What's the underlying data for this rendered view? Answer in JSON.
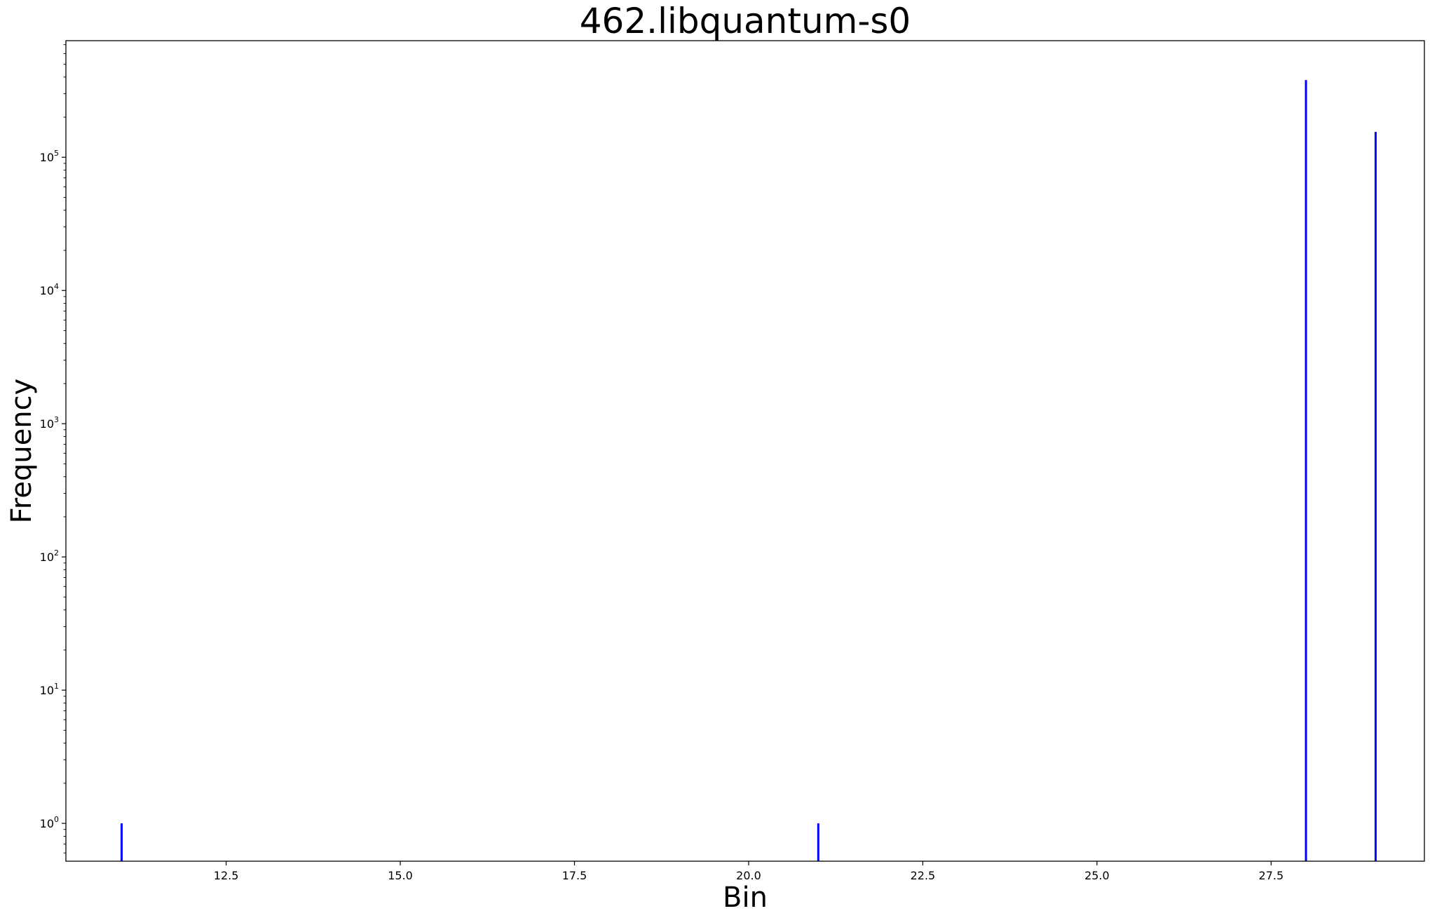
{
  "chart_data": {
    "type": "bar",
    "title": "462.libquantum-s0",
    "xlabel": "Bin",
    "ylabel": "Frequency",
    "yscale": "log",
    "xlim": [
      10.2,
      29.7
    ],
    "ylim": [
      0.52,
      750000
    ],
    "x_ticks": [
      12.5,
      15.0,
      17.5,
      20.0,
      22.5,
      25.0,
      27.5
    ],
    "x_tick_labels": [
      "12.5",
      "15.0",
      "17.5",
      "20.0",
      "22.5",
      "25.0",
      "27.5"
    ],
    "y_ticks": [
      {
        "value": 1,
        "base": "10",
        "exp": "0"
      },
      {
        "value": 10,
        "base": "10",
        "exp": "1"
      },
      {
        "value": 100,
        "base": "10",
        "exp": "2"
      },
      {
        "value": 1000,
        "base": "10",
        "exp": "3"
      },
      {
        "value": 10000,
        "base": "10",
        "exp": "4"
      },
      {
        "value": 100000,
        "base": "10",
        "exp": "5"
      }
    ],
    "grid": false,
    "bar_color": "#0000ff",
    "bins": [
      11,
      21,
      28,
      29
    ],
    "values": [
      1,
      1,
      380000,
      155000
    ]
  }
}
